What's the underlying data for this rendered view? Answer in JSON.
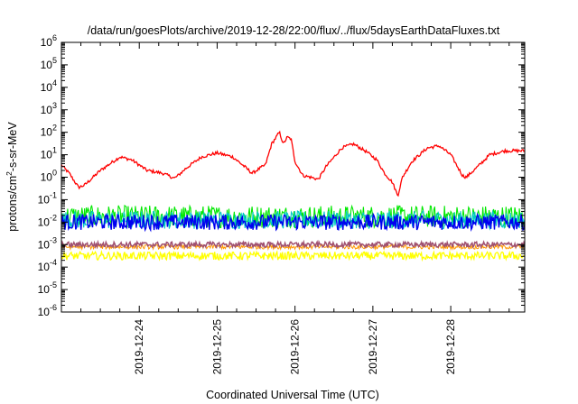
{
  "chart_data": {
    "type": "line",
    "title": "/data/run/goesPlots/archive/2019-12-28/22:00/flux/../flux/5daysEarthDataFluxes.txt",
    "xlabel": "Coordinated Universal Time (UTC)",
    "ylabel": {
      "base": "protons/cm",
      "sup": "2",
      "rest": "-s-sr-MeV"
    },
    "yscale": "log",
    "ylim_exp": [
      -6,
      6
    ],
    "y_ticks": [
      {
        "base": "10",
        "exp": "-6"
      },
      {
        "base": "10",
        "exp": "-5"
      },
      {
        "base": "10",
        "exp": "-4"
      },
      {
        "base": "10",
        "exp": "-3"
      },
      {
        "base": "10",
        "exp": "-2"
      },
      {
        "base": "10",
        "exp": "-1"
      },
      {
        "base": "10",
        "exp": "0"
      },
      {
        "base": "10",
        "exp": "1"
      },
      {
        "base": "10",
        "exp": "2"
      },
      {
        "base": "10",
        "exp": "3"
      },
      {
        "base": "10",
        "exp": "4"
      },
      {
        "base": "10",
        "exp": "5"
      },
      {
        "base": "10",
        "exp": "6"
      }
    ],
    "xlim_days": [
      23.0,
      28.95
    ],
    "x_ticks": [
      {
        "label": "2019-12-24",
        "day": 24.0
      },
      {
        "label": "2019-12-25",
        "day": 25.0
      },
      {
        "label": "2019-12-26",
        "day": 26.0
      },
      {
        "label": "2019-12-27",
        "day": 27.0
      },
      {
        "label": "2019-12-28",
        "day": 28.0
      }
    ],
    "grid": false,
    "series": [
      {
        "color": "#ff0000",
        "noise": 0.07,
        "width": 1.3,
        "points": [
          [
            23.0,
            3.5
          ],
          [
            23.1,
            1.5
          ],
          [
            23.22,
            0.35
          ],
          [
            23.3,
            0.45
          ],
          [
            23.5,
            2
          ],
          [
            23.75,
            8
          ],
          [
            23.9,
            6
          ],
          [
            24.1,
            2
          ],
          [
            24.3,
            1.5
          ],
          [
            24.45,
            0.9
          ],
          [
            24.5,
            1.2
          ],
          [
            24.6,
            2.5
          ],
          [
            24.8,
            8
          ],
          [
            25.0,
            12
          ],
          [
            25.2,
            8
          ],
          [
            25.35,
            3
          ],
          [
            25.45,
            1.5
          ],
          [
            25.55,
            2.5
          ],
          [
            25.62,
            3.5
          ],
          [
            25.7,
            30
          ],
          [
            25.8,
            100
          ],
          [
            25.85,
            30
          ],
          [
            25.9,
            60
          ],
          [
            25.95,
            50
          ],
          [
            26.0,
            5
          ],
          [
            26.1,
            1.2
          ],
          [
            26.2,
            1
          ],
          [
            26.3,
            0.8
          ],
          [
            26.4,
            3
          ],
          [
            26.6,
            20
          ],
          [
            26.75,
            30
          ],
          [
            26.9,
            15
          ],
          [
            27.05,
            6
          ],
          [
            27.15,
            1.5
          ],
          [
            27.25,
            0.6
          ],
          [
            27.32,
            0.15
          ],
          [
            27.38,
            1
          ],
          [
            27.5,
            5
          ],
          [
            27.7,
            20
          ],
          [
            27.85,
            25
          ],
          [
            28.0,
            10
          ],
          [
            28.15,
            1.2
          ],
          [
            28.2,
            1.0
          ],
          [
            28.35,
            3
          ],
          [
            28.5,
            10
          ],
          [
            28.7,
            15
          ],
          [
            28.95,
            15
          ]
        ]
      },
      {
        "color": "#00e800",
        "base_exp": -1.75,
        "spread": 0.5,
        "width": 1.1
      },
      {
        "color": "#00c8c8",
        "base_exp": -1.9,
        "spread": 0.4,
        "width": 1.1
      },
      {
        "color": "#0000f0",
        "base_exp": -2.0,
        "spread": 0.35,
        "width": 1.4
      },
      {
        "color": "#ffff00",
        "base_exp": -3.5,
        "spread": 0.18,
        "width": 1.3
      },
      {
        "color": "#ff9900",
        "base_exp": -3.1,
        "spread": 0.1,
        "width": 1.0
      },
      {
        "color": "#a05070",
        "base_exp": -3.0,
        "spread": 0.12,
        "width": 1.5
      }
    ]
  }
}
